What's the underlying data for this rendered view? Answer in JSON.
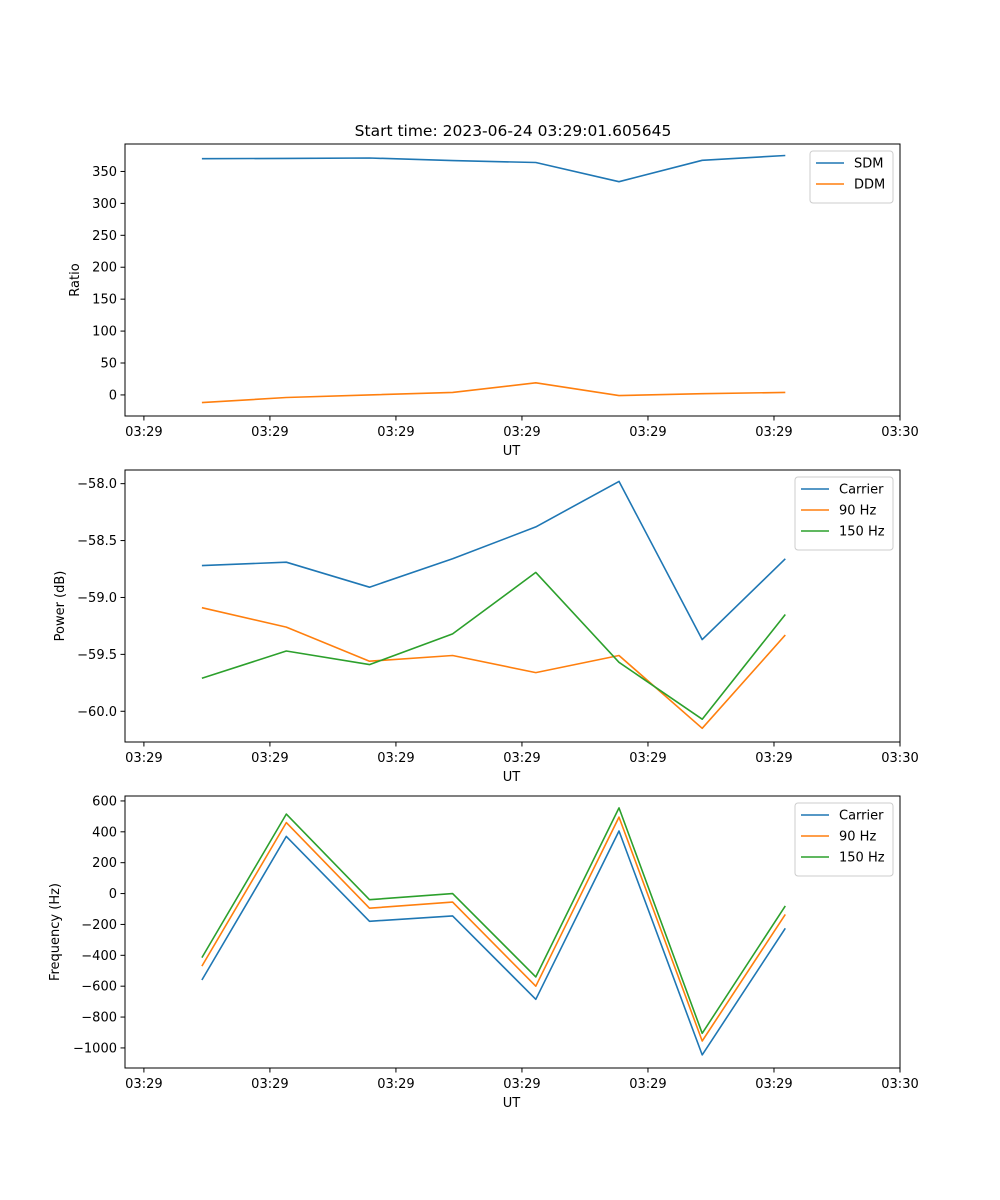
{
  "figure": {
    "title": "Start time: 2023-06-24 03:29:01.605645"
  },
  "chart_data": [
    {
      "type": "line",
      "title": "Start time: 2023-06-24 03:29:01.605645",
      "xlabel": "UT",
      "ylabel": "Ratio",
      "xtick_labels": [
        "03:29",
        "03:29",
        "03:29",
        "03:29",
        "03:29",
        "03:29",
        "03:30"
      ],
      "xlim": [
        -0.15,
        6.0
      ],
      "ylim": [
        -33,
        393
      ],
      "yticks": [
        0,
        50,
        100,
        150,
        200,
        250,
        300,
        350
      ],
      "x": [
        0.46,
        1.13,
        1.79,
        2.45,
        3.11,
        3.77,
        4.43,
        5.09
      ],
      "legend": "top-right",
      "series": [
        {
          "name": "SDM",
          "color": "#1f77b4",
          "values": [
            370,
            370.5,
            371,
            367,
            364,
            334,
            367.5,
            375
          ]
        },
        {
          "name": "DDM",
          "color": "#ff7f0e",
          "values": [
            -12,
            -4,
            0,
            4,
            19,
            -1,
            2,
            4
          ]
        }
      ]
    },
    {
      "type": "line",
      "xlabel": "UT",
      "ylabel": "Power (dB)",
      "xtick_labels": [
        "03:29",
        "03:29",
        "03:29",
        "03:29",
        "03:29",
        "03:29",
        "03:30"
      ],
      "xlim": [
        -0.15,
        6.0
      ],
      "ylim": [
        -60.27,
        -57.88
      ],
      "yticks": [
        -60.0,
        -59.5,
        -59.0,
        -58.5,
        -58.0
      ],
      "ytick_labels": [
        "−60.0",
        "−59.5",
        "−59.0",
        "−58.5",
        "−58.0"
      ],
      "x": [
        0.46,
        1.13,
        1.79,
        2.45,
        3.11,
        3.77,
        4.43,
        5.09
      ],
      "legend": "top-right",
      "series": [
        {
          "name": "Carrier",
          "color": "#1f77b4",
          "values": [
            -58.72,
            -58.69,
            -58.91,
            -58.66,
            -58.38,
            -57.98,
            -59.37,
            -58.66
          ]
        },
        {
          "name": "90 Hz",
          "color": "#ff7f0e",
          "values": [
            -59.09,
            -59.26,
            -59.56,
            -59.51,
            -59.66,
            -59.51,
            -60.15,
            -59.33
          ]
        },
        {
          "name": "150 Hz",
          "color": "#2ca02c",
          "values": [
            -59.71,
            -59.47,
            -59.59,
            -59.32,
            -58.78,
            -59.57,
            -60.07,
            -59.15
          ]
        }
      ]
    },
    {
      "type": "line",
      "xlabel": "UT",
      "ylabel": "Frequency (Hz)",
      "xtick_labels": [
        "03:29",
        "03:29",
        "03:29",
        "03:29",
        "03:29",
        "03:29",
        "03:30"
      ],
      "xlim": [
        -0.15,
        6.0
      ],
      "ylim": [
        -1130,
        632
      ],
      "yticks": [
        -1000,
        -800,
        -600,
        -400,
        -200,
        0,
        200,
        400,
        600
      ],
      "ytick_labels": [
        "−1000",
        "−800",
        "−600",
        "−400",
        "−200",
        "0",
        "200",
        "400",
        "600"
      ],
      "x": [
        0.46,
        1.13,
        1.79,
        2.45,
        3.11,
        3.77,
        4.43,
        5.09
      ],
      "legend": "top-right",
      "series": [
        {
          "name": "Carrier",
          "color": "#1f77b4",
          "values": [
            -560,
            370,
            -180,
            -145,
            -685,
            405,
            -1045,
            -225
          ]
        },
        {
          "name": "90 Hz",
          "color": "#ff7f0e",
          "values": [
            -470,
            460,
            -95,
            -55,
            -600,
            495,
            -955,
            -135
          ]
        },
        {
          "name": "150 Hz",
          "color": "#2ca02c",
          "values": [
            -415,
            515,
            -40,
            0,
            -540,
            555,
            -905,
            -80
          ]
        }
      ]
    }
  ]
}
